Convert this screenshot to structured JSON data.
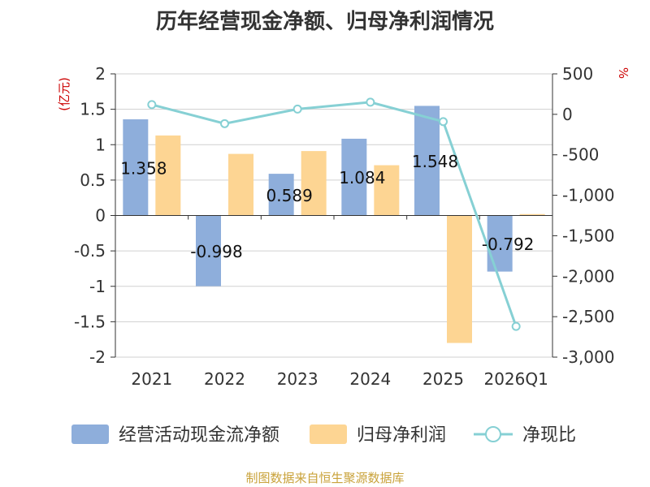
{
  "chart_data": {
    "type": "bar",
    "title": "历年经营现金净额、归母净利润情况",
    "categories": [
      "2021",
      "2022",
      "2023",
      "2024",
      "2025",
      "2026Q1"
    ],
    "series": [
      {
        "name": "经营活动现金流净额",
        "kind": "bar",
        "axis": "left",
        "color": "#8eaedb",
        "values": [
          1.358,
          -0.998,
          0.589,
          1.084,
          1.548,
          -0.792
        ],
        "labels": [
          "1.358",
          "-0.998",
          "0.589",
          "1.084",
          "1.548",
          "-0.792"
        ]
      },
      {
        "name": "归母净利润",
        "kind": "bar",
        "axis": "left",
        "color": "#fdd593",
        "values": [
          1.13,
          0.87,
          0.91,
          0.71,
          -1.8,
          0.02
        ]
      },
      {
        "name": "净现比",
        "kind": "line",
        "axis": "right",
        "color": "#86d0d4",
        "values": [
          120,
          -115,
          65,
          150,
          -90,
          -2620
        ]
      }
    ],
    "left_axis": {
      "label": "(亿元)",
      "min": -2,
      "max": 2,
      "ticks": [
        2,
        1.5,
        1,
        0.5,
        0,
        -0.5,
        -1,
        -1.5,
        -2
      ],
      "tick_labels": [
        "2",
        "1.5",
        "1",
        "0.5",
        "0",
        "-0.5",
        "-1",
        "-1.5",
        "-2"
      ]
    },
    "right_axis": {
      "label": "%",
      "min": -3000,
      "max": 500,
      "ticks": [
        500,
        0,
        -500,
        -1000,
        -1500,
        -2000,
        -2500,
        -3000
      ],
      "tick_labels": [
        "500",
        "0",
        "-500",
        "-1,000",
        "-1,500",
        "-2,000",
        "-2,500",
        "-3,000"
      ]
    },
    "grid": true,
    "legend": "bottom",
    "source": "制图数据来自恒生聚源数据库"
  }
}
